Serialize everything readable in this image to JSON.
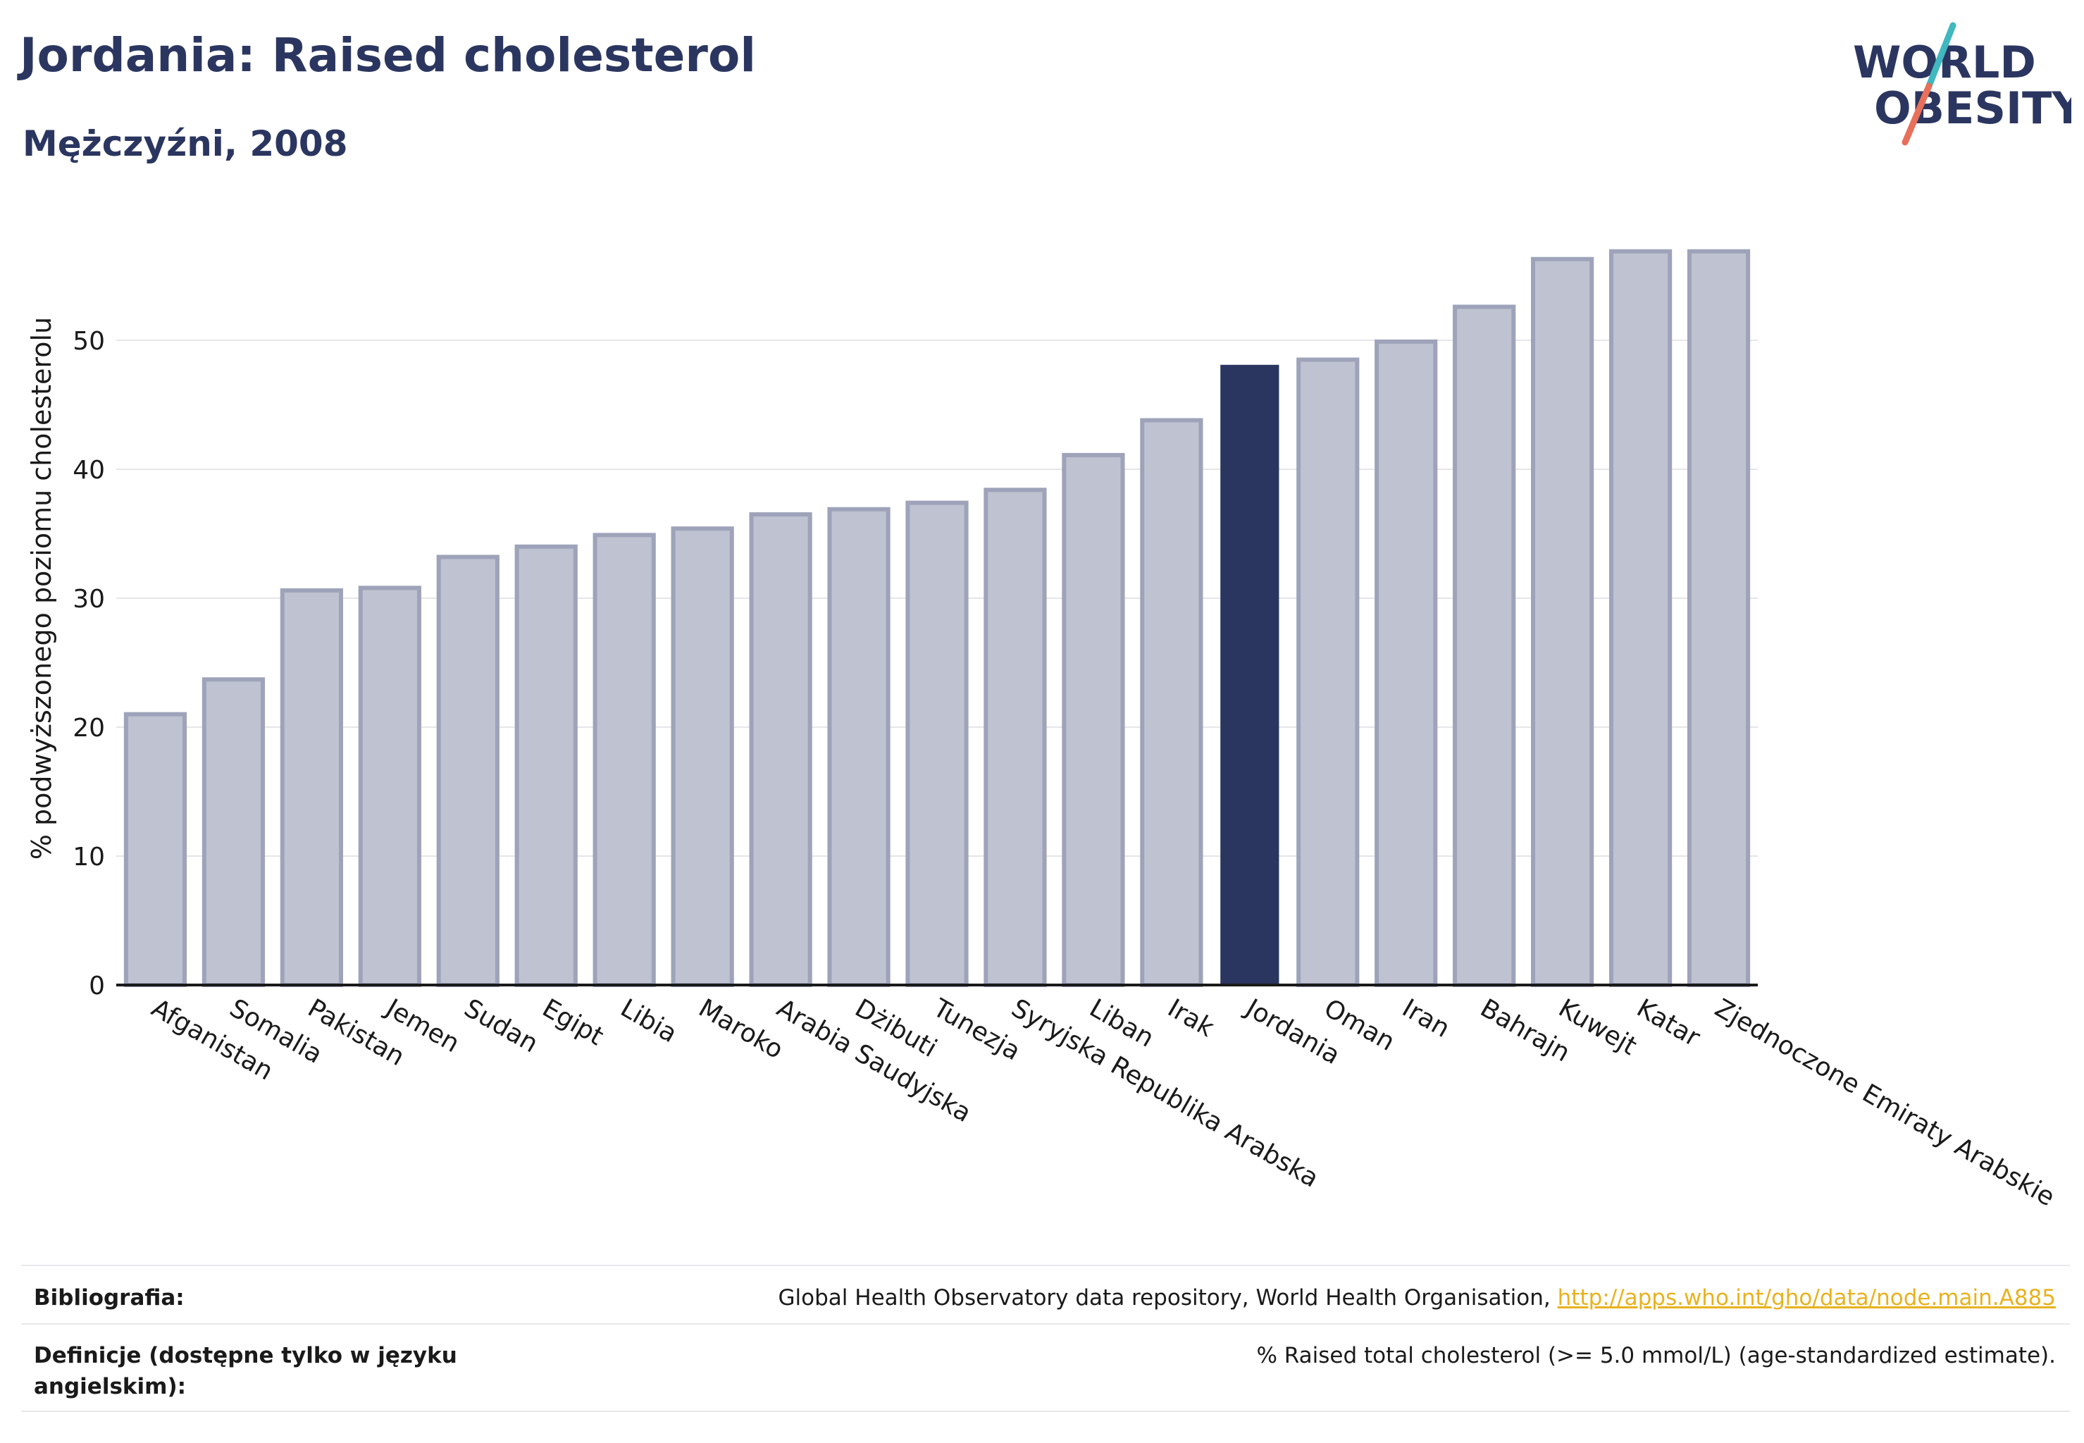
{
  "header": {
    "title": "Jordania: Raised cholesterol",
    "subtitle": "Mężczyźni, 2008"
  },
  "logo": {
    "line1": "WORLD",
    "line2": "OBESITY",
    "colors": {
      "text": "#2b3660",
      "slash_top": "#3fb8c0",
      "slash_bottom": "#e8705a"
    }
  },
  "chart_data": {
    "type": "bar",
    "ylabel": "% podwyższonego poziomu cholesterolu",
    "ylim": [
      0,
      60
    ],
    "yticks": [
      0,
      10,
      20,
      30,
      40,
      50
    ],
    "grid": true,
    "highlight": "Jordania",
    "colors": {
      "bar": "#bfc2d0",
      "bar_edge": "#9ea3ba",
      "highlight": "#2b3660"
    },
    "categories": [
      "Afganistan",
      "Somalia",
      "Pakistan",
      "Jemen",
      "Sudan",
      "Egipt",
      "Libia",
      "Maroko",
      "Arabia Saudyjska",
      "Dżibuti",
      "Tunezja",
      "Syryjska Republika Arabska",
      "Liban",
      "Irak",
      "Jordania",
      "Oman",
      "Iran",
      "Bahrajn",
      "Kuwejt",
      "Katar",
      "Zjednoczone Emiraty Arabskie"
    ],
    "values": [
      21.0,
      23.7,
      30.6,
      30.8,
      33.2,
      34.0,
      34.9,
      35.4,
      36.5,
      36.9,
      37.4,
      38.4,
      41.1,
      43.8,
      48.1,
      48.5,
      49.9,
      52.6,
      56.3,
      56.9,
      56.9
    ]
  },
  "footer": {
    "bibliography_label": "Bibliografia:",
    "bibliography_text": "Global Health Observatory data repository, World Health Organisation, ",
    "bibliography_link": "http://apps.who.int/gho/data/node.main.A885",
    "definitions_label_1": "Definicje (dostępne tylko w języku",
    "definitions_label_2": "angielskim):",
    "definitions_text": "% Raised total cholesterol (>= 5.0 mmol/L) (age-standardized estimate)."
  }
}
